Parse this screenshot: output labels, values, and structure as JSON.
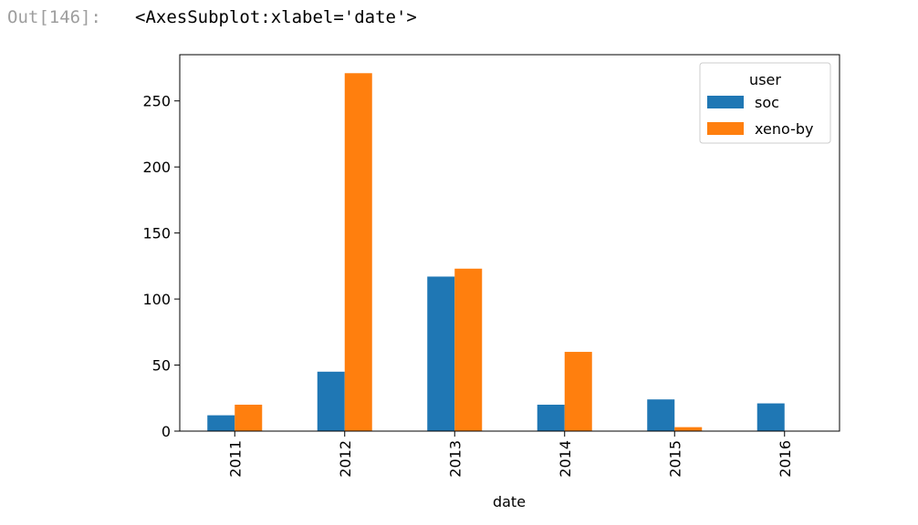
{
  "cell": {
    "prompt": "Out[146]:",
    "repr": "<AxesSubplot:xlabel='date'>"
  },
  "chart_data": {
    "type": "bar",
    "categories": [
      "2011",
      "2012",
      "2013",
      "2014",
      "2015",
      "2016"
    ],
    "series": [
      {
        "name": "soc",
        "color": "#1f77b4",
        "values": [
          12,
          45,
          117,
          20,
          24,
          21
        ]
      },
      {
        "name": "xeno-by",
        "color": "#ff7f0e",
        "values": [
          20,
          271,
          123,
          60,
          3,
          0
        ]
      }
    ],
    "xlabel": "date",
    "ylabel": "",
    "ylim": [
      0,
      285
    ],
    "yticks": [
      0,
      50,
      100,
      150,
      200,
      250
    ],
    "legend": {
      "title": "user",
      "placement": "top-right"
    },
    "grid": false
  }
}
